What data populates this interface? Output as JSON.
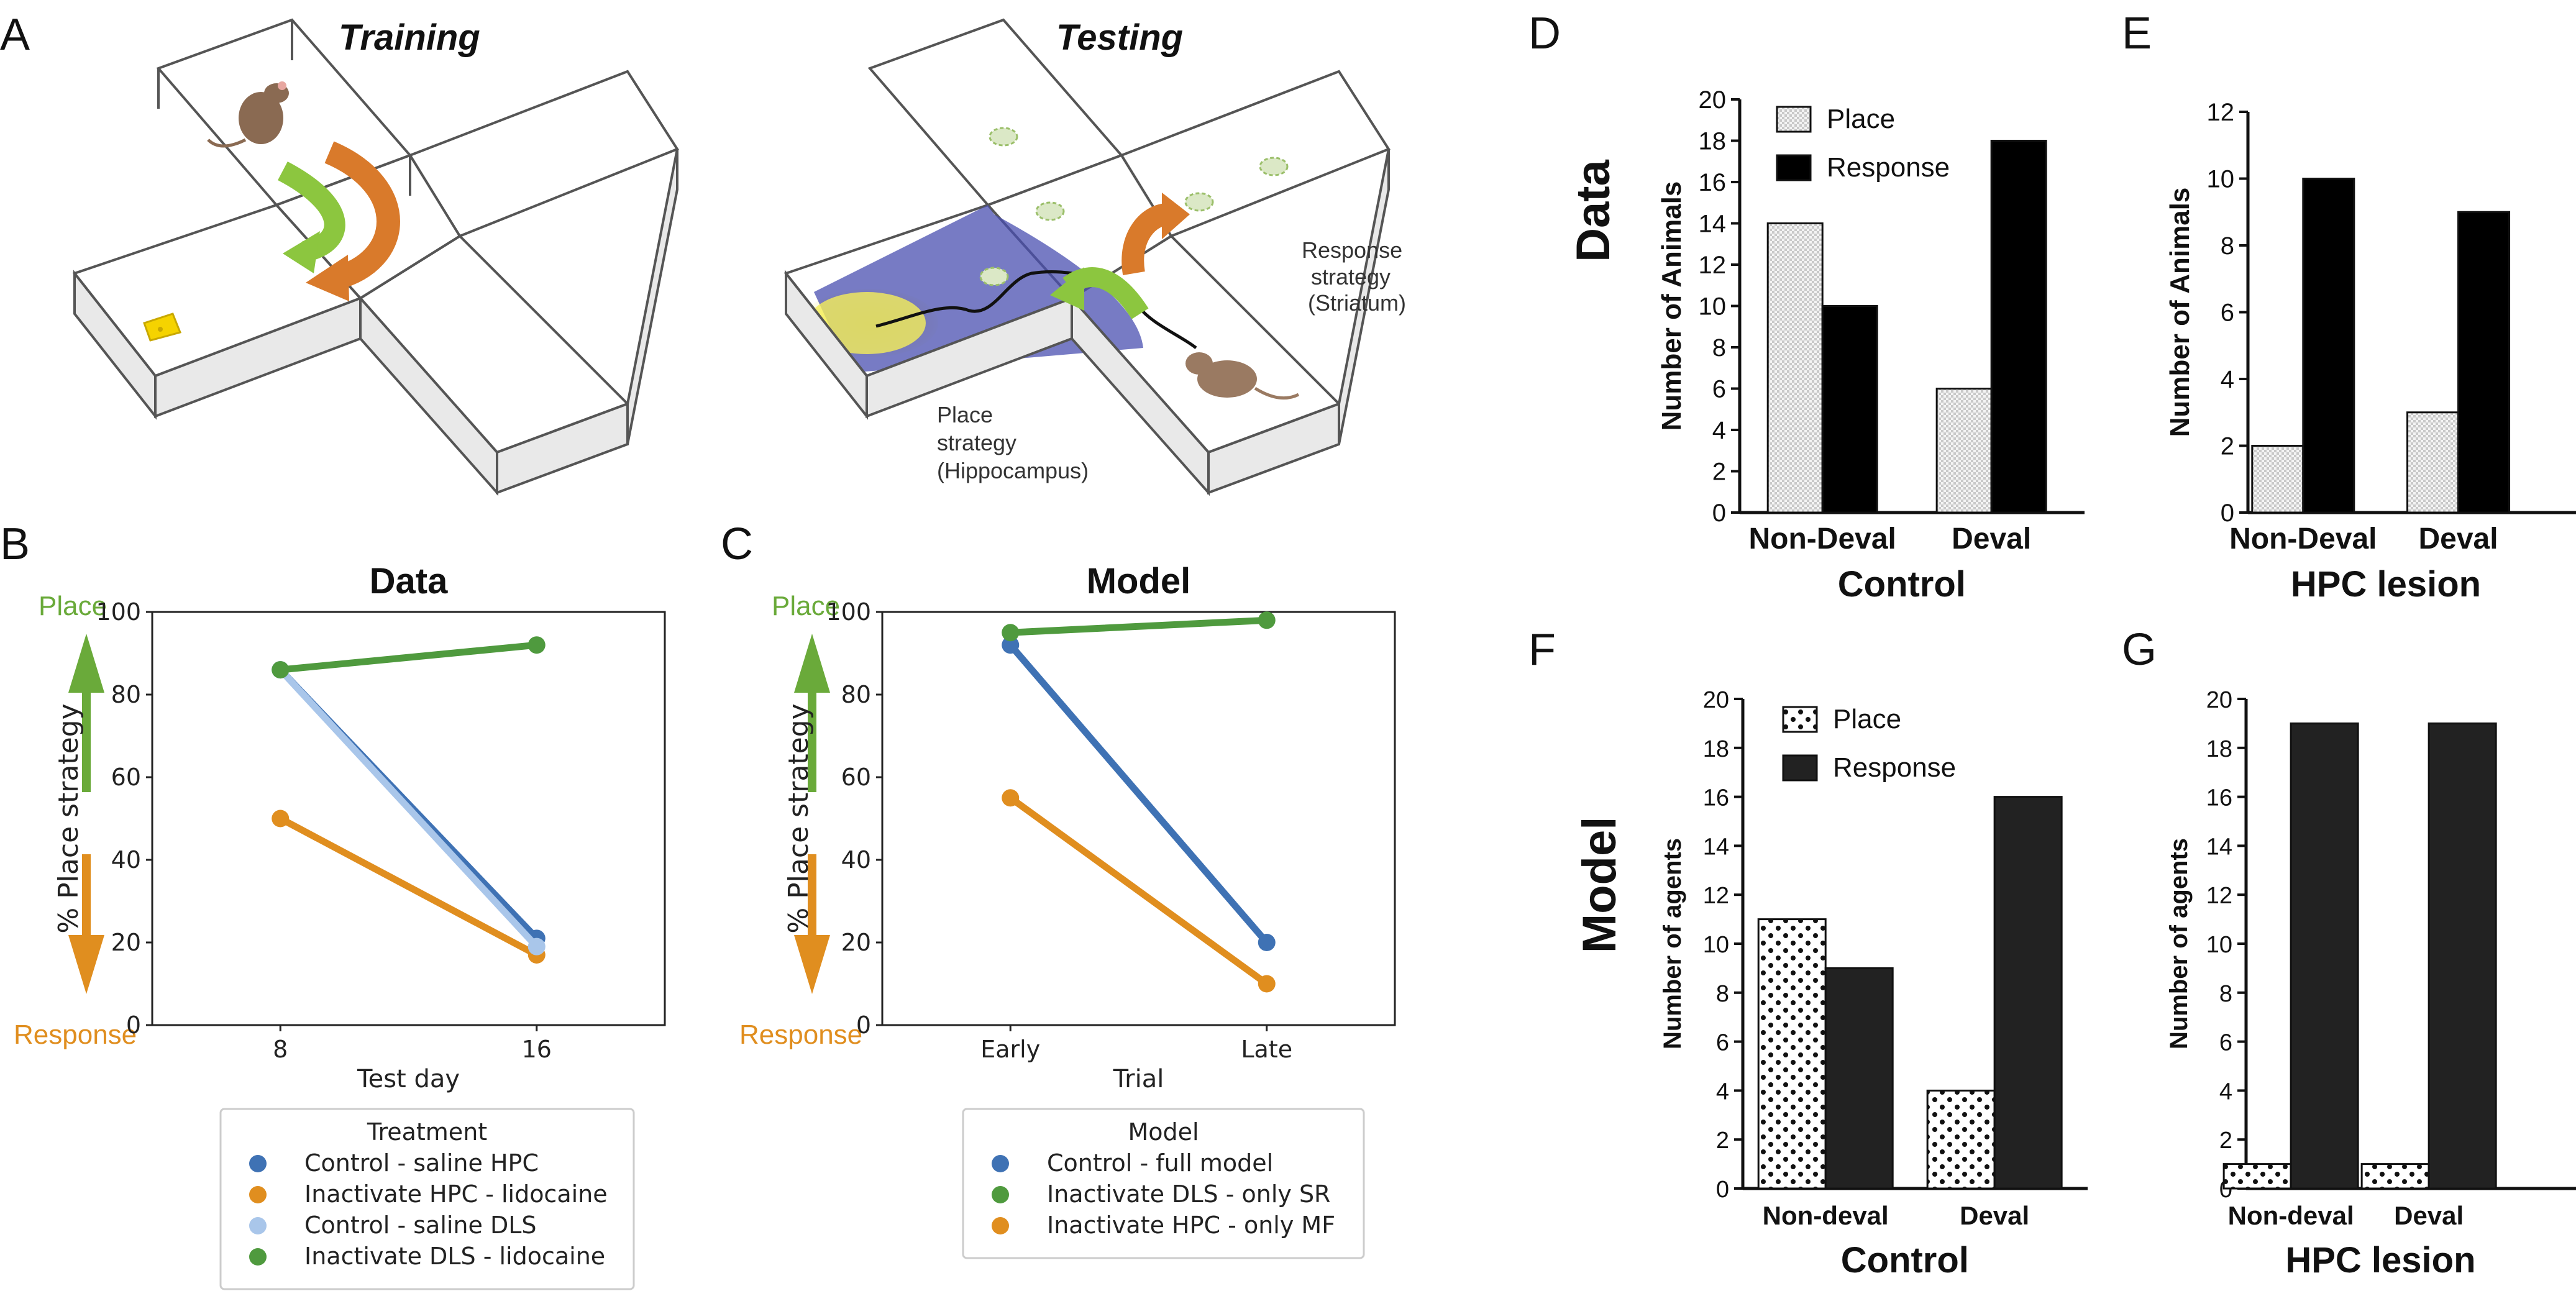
{
  "panels": {
    "A": "A",
    "B": "B",
    "C": "C",
    "D": "D",
    "E": "E",
    "F": "F",
    "G": "G"
  },
  "maze": {
    "training_title": "Training",
    "testing_title": "Testing",
    "response_strategy": [
      "Response",
      "strategy",
      "(Striatum)"
    ],
    "place_strategy": [
      "Place",
      "strategy",
      "(Hippocampus)"
    ]
  },
  "arrows": {
    "place": "Place",
    "response": "Response"
  },
  "colors": {
    "blue": "#3f72b4",
    "orange": "#e08e1f",
    "lightblue": "#a9c6ea",
    "green": "#4f9a3e",
    "arrow_green": "#6aaa3a",
    "arrow_orange": "#e08e1f",
    "maze_orange": "#d97a2b",
    "maze_green": "#8cc63f"
  },
  "chart_data": [
    {
      "id": "B",
      "type": "line",
      "title": "Data",
      "xlabel": "Test day",
      "ylabel": "% Place strategy",
      "categories": [
        "8",
        "16"
      ],
      "ylim": [
        0,
        100
      ],
      "yticks": [
        "0",
        "20",
        "40",
        "60",
        "80",
        "100"
      ],
      "legend_title": "Treatment",
      "legend_placement": "bottom",
      "series": [
        {
          "name": "Control - saline HPC",
          "color": "#3f72b4",
          "values": [
            86,
            21
          ]
        },
        {
          "name": "Inactivate HPC - lidocaine",
          "color": "#e08e1f",
          "values": [
            50,
            17
          ]
        },
        {
          "name": "Control - saline DLS",
          "color": "#a9c6ea",
          "values": [
            86,
            19
          ]
        },
        {
          "name": "Inactivate DLS - lidocaine",
          "color": "#4f9a3e",
          "values": [
            86,
            92
          ]
        }
      ]
    },
    {
      "id": "C",
      "type": "line",
      "title": "Model",
      "xlabel": "Trial",
      "ylabel": "% Place strategy",
      "categories": [
        "Early",
        "Late"
      ],
      "ylim": [
        0,
        100
      ],
      "yticks": [
        "0",
        "20",
        "40",
        "60",
        "80",
        "100"
      ],
      "legend_title": "Model",
      "legend_placement": "bottom",
      "series": [
        {
          "name": "Control - full model",
          "color": "#3f72b4",
          "values": [
            92,
            20
          ]
        },
        {
          "name": "Inactivate DLS - only SR",
          "color": "#4f9a3e",
          "values": [
            95,
            98
          ]
        },
        {
          "name": "Inactivate HPC - only MF",
          "color": "#e08e1f",
          "values": [
            55,
            10
          ]
        }
      ]
    },
    {
      "id": "D",
      "type": "bar",
      "row_label": "Data",
      "ylabel": "Number of Animals",
      "xlabel": "Control",
      "categories": [
        "Non-Deval",
        "Deval"
      ],
      "ylim": [
        0,
        20
      ],
      "yticks": [
        "0",
        "2",
        "4",
        "6",
        "8",
        "10",
        "12",
        "14",
        "16",
        "18",
        "20"
      ],
      "legend_placement": "top-left",
      "series": [
        {
          "name": "Place",
          "values": [
            14,
            6
          ]
        },
        {
          "name": "Response",
          "values": [
            10,
            18
          ]
        }
      ]
    },
    {
      "id": "E",
      "type": "bar",
      "ylabel": "Number of Animals",
      "xlabel": "HPC lesion",
      "categories": [
        "Non-Deval",
        "Deval"
      ],
      "ylim": [
        0,
        12
      ],
      "yticks": [
        "0",
        "2",
        "4",
        "6",
        "8",
        "10",
        "12"
      ],
      "series": [
        {
          "name": "Place",
          "values": [
            2,
            3
          ]
        },
        {
          "name": "Response",
          "values": [
            10,
            9
          ]
        }
      ]
    },
    {
      "id": "F",
      "type": "bar",
      "row_label": "Model",
      "ylabel": "Number of agents",
      "xlabel": "Control",
      "categories": [
        "Non-deval",
        "Deval"
      ],
      "ylim": [
        0,
        20
      ],
      "yticks": [
        "0",
        "2",
        "4",
        "6",
        "8",
        "10",
        "12",
        "14",
        "16",
        "18",
        "20"
      ],
      "legend_placement": "top-left",
      "series": [
        {
          "name": "Place",
          "values": [
            11,
            4
          ]
        },
        {
          "name": "Response",
          "values": [
            9,
            16
          ]
        }
      ]
    },
    {
      "id": "G",
      "type": "bar",
      "ylabel": "Number of agents",
      "xlabel": "HPC lesion",
      "categories": [
        "Non-deval",
        "Deval"
      ],
      "ylim": [
        0,
        20
      ],
      "yticks": [
        "0",
        "2",
        "4",
        "6",
        "8",
        "10",
        "12",
        "14",
        "16",
        "18",
        "20"
      ],
      "series": [
        {
          "name": "Place",
          "values": [
            1,
            1
          ]
        },
        {
          "name": "Response",
          "values": [
            19,
            19
          ]
        }
      ]
    }
  ]
}
